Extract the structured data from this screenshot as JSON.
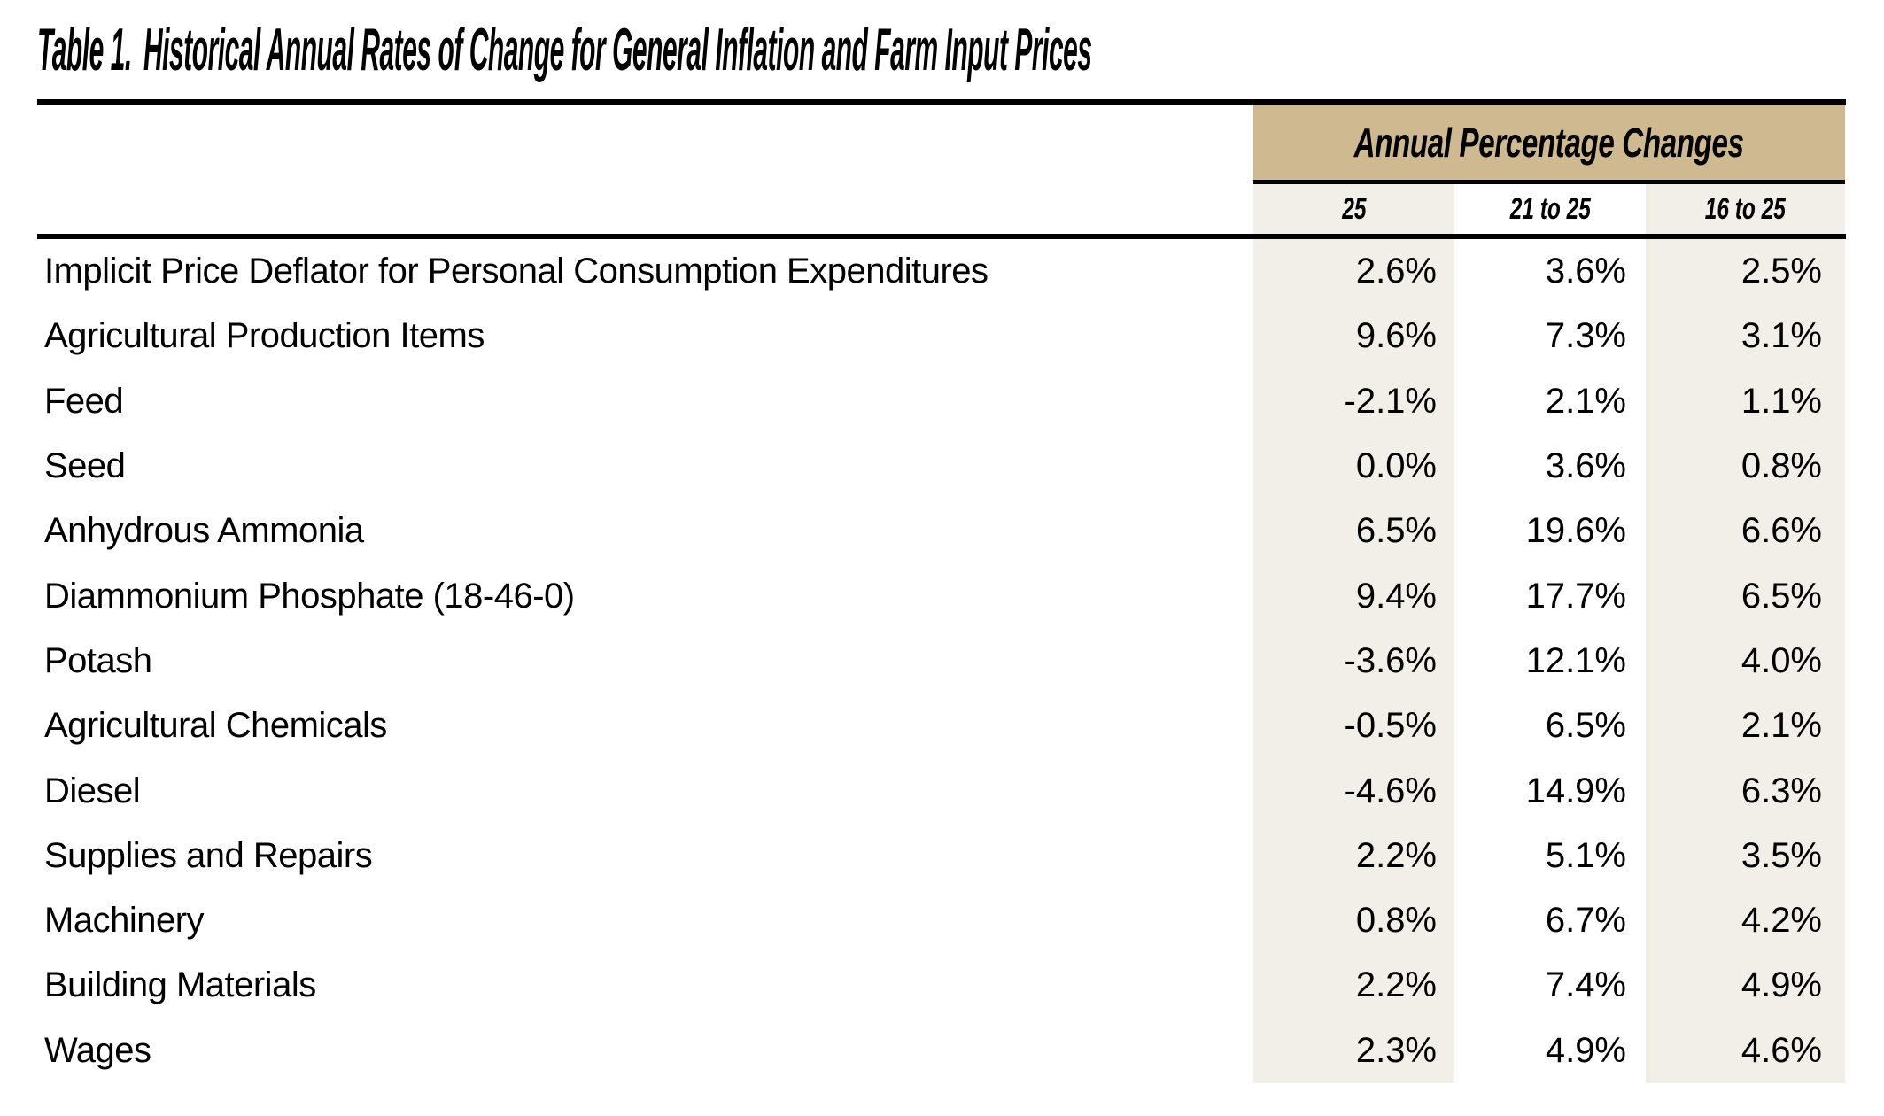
{
  "title": {
    "label": "Table 1.",
    "text": "Historical Annual Rates of Change for General Inflation and Farm Input Prices"
  },
  "table": {
    "group_header": "Annual Percentage Changes",
    "columns": [
      "25",
      "21 to 25",
      "16 to 25"
    ],
    "rows": [
      {
        "label": "Implicit Price Deflator for Personal Consumption Expenditures",
        "values": [
          "2.6%",
          "3.6%",
          "2.5%"
        ]
      },
      {
        "label": "Agricultural Production Items",
        "values": [
          "9.6%",
          "7.3%",
          "3.1%"
        ]
      },
      {
        "label": "Feed",
        "values": [
          "-2.1%",
          "2.1%",
          "1.1%"
        ]
      },
      {
        "label": "Seed",
        "values": [
          "0.0%",
          "3.6%",
          "0.8%"
        ]
      },
      {
        "label": "Anhydrous Ammonia",
        "values": [
          "6.5%",
          "19.6%",
          "6.6%"
        ]
      },
      {
        "label": "Diammonium Phosphate (18-46-0)",
        "values": [
          "9.4%",
          "17.7%",
          "6.5%"
        ]
      },
      {
        "label": "Potash",
        "values": [
          "-3.6%",
          "12.1%",
          "4.0%"
        ]
      },
      {
        "label": "Agricultural Chemicals",
        "values": [
          "-0.5%",
          "6.5%",
          "2.1%"
        ]
      },
      {
        "label": "Diesel",
        "values": [
          "-4.6%",
          "14.9%",
          "6.3%"
        ]
      },
      {
        "label": "Supplies and Repairs",
        "values": [
          "2.2%",
          "5.1%",
          "3.5%"
        ]
      },
      {
        "label": "Machinery",
        "values": [
          "0.8%",
          "6.7%",
          "4.2%"
        ]
      },
      {
        "label": "Building Materials",
        "values": [
          "2.2%",
          "7.4%",
          "4.9%"
        ]
      },
      {
        "label": "Wages",
        "values": [
          "2.3%",
          "4.9%",
          "4.6%"
        ]
      }
    ]
  },
  "colors": {
    "band_gold": "#cfb991",
    "column_shade": "#f2efe8",
    "rule_black": "#000000"
  }
}
